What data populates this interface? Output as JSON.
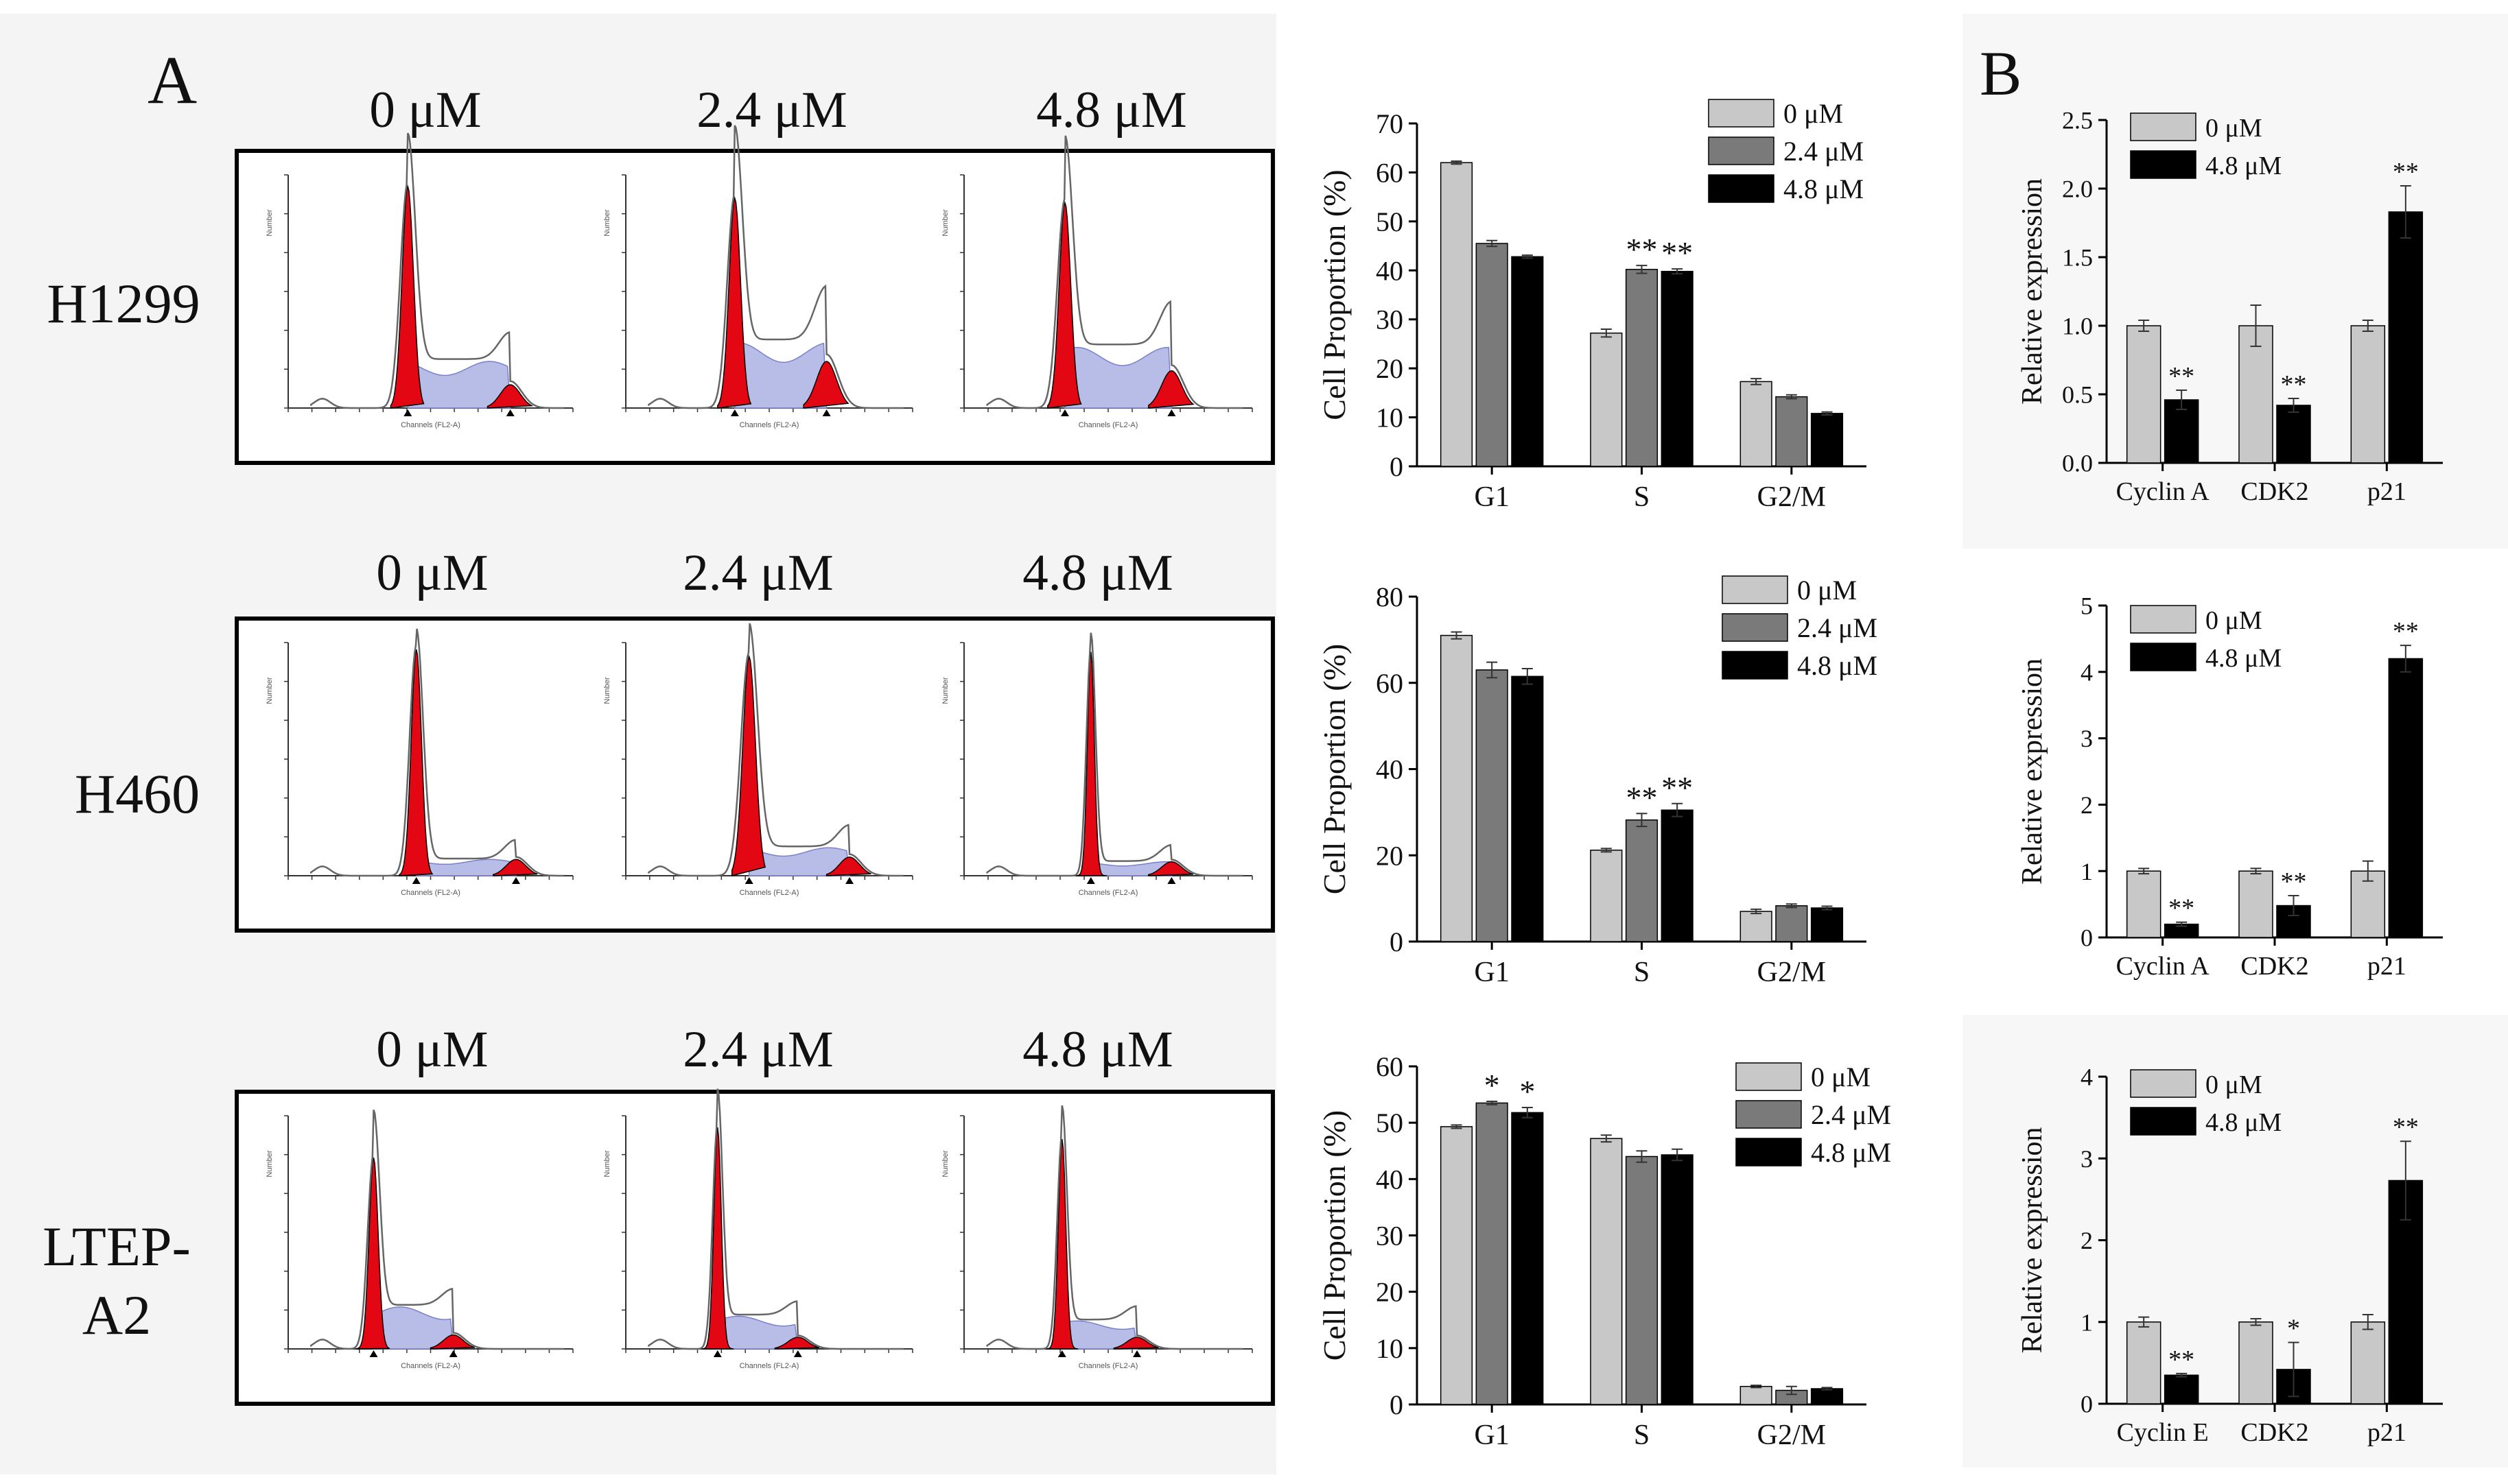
{
  "panel_labels": {
    "a": "A",
    "b": "B"
  },
  "cell_lines": [
    "H1299",
    "H460",
    "LTEP-A2"
  ],
  "doses": [
    "0 μM",
    "2.4 μM",
    "4.8 μM"
  ],
  "flow_axis": {
    "x_label": "Channels (FL2-A)",
    "y_label": "Number"
  },
  "colors": {
    "dose0": "#c8c8c8",
    "dose24": "#7a7a7a",
    "dose48": "#000000",
    "flow_peak": "#e30613",
    "flow_s": "#b8bde8"
  },
  "chart_data": [
    {
      "type": "bar",
      "id": "cycle-H1299",
      "categories": [
        "G1",
        "S",
        "G2/M"
      ],
      "ylabel": "Cell Proportion (%)",
      "ylim": [
        0,
        70
      ],
      "yticks": [
        0,
        10,
        20,
        30,
        40,
        50,
        60,
        70
      ],
      "series": [
        {
          "name": "0 μM",
          "values": [
            62,
            27.2,
            17.3
          ],
          "errors": [
            0.3,
            0.8,
            0.6
          ],
          "marks": [
            "",
            "",
            ""
          ]
        },
        {
          "name": "2.4 μM",
          "values": [
            45.5,
            40.2,
            14.2
          ],
          "errors": [
            0.6,
            0.8,
            0.4
          ],
          "marks": [
            "",
            "**",
            ""
          ]
        },
        {
          "name": "4.8 μM",
          "values": [
            42.8,
            39.8,
            10.8
          ],
          "errors": [
            0.3,
            0.5,
            0.3
          ],
          "marks": [
            "",
            "**",
            ""
          ]
        }
      ]
    },
    {
      "type": "bar",
      "id": "cycle-H460",
      "categories": [
        "G1",
        "S",
        "G2/M"
      ],
      "ylabel": "Cell Proportion (%)",
      "ylim": [
        0,
        80
      ],
      "yticks": [
        0,
        20,
        40,
        60,
        80
      ],
      "series": [
        {
          "name": "0 μM",
          "values": [
            71,
            21.2,
            7
          ],
          "errors": [
            0.8,
            0.4,
            0.5
          ],
          "marks": [
            "",
            "",
            ""
          ]
        },
        {
          "name": "2.4 μM",
          "values": [
            63,
            28.2,
            8.3
          ],
          "errors": [
            1.8,
            1.5,
            0.4
          ],
          "marks": [
            "",
            "**",
            ""
          ]
        },
        {
          "name": "4.8 μM",
          "values": [
            61.5,
            30.5,
            7.8
          ],
          "errors": [
            1.8,
            1.5,
            0.4
          ],
          "marks": [
            "",
            "**",
            ""
          ]
        }
      ]
    },
    {
      "type": "bar",
      "id": "cycle-LTEP-A2",
      "categories": [
        "G1",
        "S",
        "G2/M"
      ],
      "ylabel": "Cell Proportion (%)",
      "ylim": [
        0,
        60
      ],
      "yticks": [
        0,
        10,
        20,
        30,
        40,
        50,
        60
      ],
      "series": [
        {
          "name": "0 μM",
          "values": [
            49.3,
            47.2,
            3.2
          ],
          "errors": [
            0.3,
            0.6,
            0.2
          ],
          "marks": [
            "",
            "",
            ""
          ]
        },
        {
          "name": "2.4 μM",
          "values": [
            53.5,
            44,
            2.5
          ],
          "errors": [
            0.3,
            1.0,
            0.7
          ],
          "marks": [
            "*",
            "",
            ""
          ]
        },
        {
          "name": "4.8 μM",
          "values": [
            51.8,
            44.3,
            2.8
          ],
          "errors": [
            0.9,
            1.0,
            0.2
          ],
          "marks": [
            "*",
            "",
            ""
          ]
        }
      ]
    },
    {
      "type": "bar",
      "id": "expr-H1299",
      "categories": [
        "Cyclin A",
        "CDK2",
        "p21"
      ],
      "ylabel": "Relative expression",
      "ylim": [
        0,
        2.5
      ],
      "yticks": [
        0.0,
        0.5,
        1.0,
        1.5,
        2.0,
        2.5
      ],
      "tick_decimals": 1,
      "series": [
        {
          "name": "0 μM",
          "values": [
            1.0,
            1.0,
            1.0
          ],
          "errors": [
            0.04,
            0.15,
            0.04
          ],
          "marks": [
            "",
            "",
            ""
          ]
        },
        {
          "name": "4.8 μM",
          "values": [
            0.46,
            0.42,
            1.83
          ],
          "errors": [
            0.07,
            0.05,
            0.19
          ],
          "marks": [
            "**",
            "**",
            "**"
          ]
        }
      ]
    },
    {
      "type": "bar",
      "id": "expr-H460",
      "categories": [
        "Cyclin A",
        "CDK2",
        "p21"
      ],
      "ylabel": "Relative expression",
      "ylim": [
        0,
        5
      ],
      "yticks": [
        0,
        1,
        2,
        3,
        4,
        5
      ],
      "tick_decimals": 0,
      "series": [
        {
          "name": "0 μM",
          "values": [
            1.0,
            1.0,
            1.0
          ],
          "errors": [
            0.04,
            0.04,
            0.15
          ],
          "marks": [
            "",
            "",
            ""
          ]
        },
        {
          "name": "4.8 μM",
          "values": [
            0.2,
            0.48,
            4.2
          ],
          "errors": [
            0.03,
            0.15,
            0.2
          ],
          "marks": [
            "**",
            "**",
            "**"
          ]
        }
      ]
    },
    {
      "type": "bar",
      "id": "expr-LTEP-A2",
      "categories": [
        "Cyclin E",
        "CDK2",
        "p21"
      ],
      "ylabel": "Relative expression",
      "ylim": [
        0,
        4
      ],
      "yticks": [
        0,
        1,
        2,
        3,
        4
      ],
      "tick_decimals": 0,
      "series": [
        {
          "name": "0 μM",
          "values": [
            1.0,
            1.0,
            1.0
          ],
          "errors": [
            0.06,
            0.04,
            0.09
          ],
          "marks": [
            "",
            "",
            ""
          ]
        },
        {
          "name": "4.8 μM",
          "values": [
            0.35,
            0.42,
            2.73
          ],
          "errors": [
            0.02,
            0.33,
            0.48
          ],
          "marks": [
            "**",
            "*",
            "**"
          ]
        }
      ]
    }
  ]
}
